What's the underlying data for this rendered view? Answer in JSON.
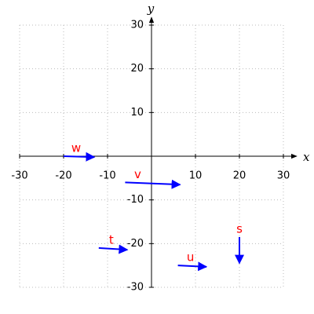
{
  "chart_data": {
    "type": "vector",
    "x_label": "x",
    "y_label": "y",
    "xlim": [
      -30,
      30
    ],
    "ylim": [
      -30,
      30
    ],
    "xticks": [
      -30,
      -20,
      -10,
      10,
      20,
      30
    ],
    "yticks": [
      -30,
      -20,
      -10,
      10,
      20,
      30
    ],
    "grid": true,
    "arrow_color": "#0000ff",
    "label_color": "#ff0000",
    "vectors": [
      {
        "name": "w",
        "start": [
          -20,
          0
        ],
        "end": [
          -13,
          -0.2
        ]
      },
      {
        "name": "v",
        "start": [
          -6,
          -6
        ],
        "end": [
          6.5,
          -6.5
        ]
      },
      {
        "name": "t",
        "start": [
          -12,
          -21
        ],
        "end": [
          -5.5,
          -21.4
        ]
      },
      {
        "name": "u",
        "start": [
          6,
          -25
        ],
        "end": [
          12.5,
          -25.3
        ]
      },
      {
        "name": "s",
        "start": [
          20,
          -18.5
        ],
        "end": [
          20,
          -24.5
        ]
      }
    ]
  }
}
